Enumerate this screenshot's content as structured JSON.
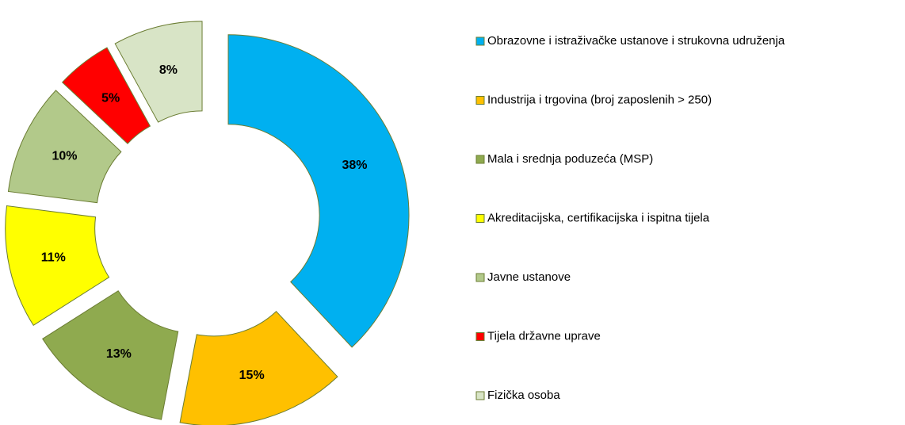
{
  "chart_data": {
    "type": "donut",
    "categories": [
      "Obrazovne i istraživačke ustanove i strukovna udruženja",
      "Industrija i trgovina (broj zaposlenih > 250)",
      "Mala i srednja poduzeća (MSP)",
      "Akreditacijska, certifikacijska i ispitna tijela",
      "Javne ustanove",
      "Tijela državne uprave",
      "Fizička osoba"
    ],
    "values": [
      38,
      15,
      13,
      11,
      10,
      5,
      8
    ],
    "value_labels": [
      "38%",
      "15%",
      "13%",
      "11%",
      "10%",
      "5%",
      "8%"
    ],
    "colors": [
      "#00b0f0",
      "#ffc000",
      "#8faa4f",
      "#ffff00",
      "#b2c98a",
      "#ff0000",
      "#d8e4c6"
    ],
    "legend": "right"
  }
}
